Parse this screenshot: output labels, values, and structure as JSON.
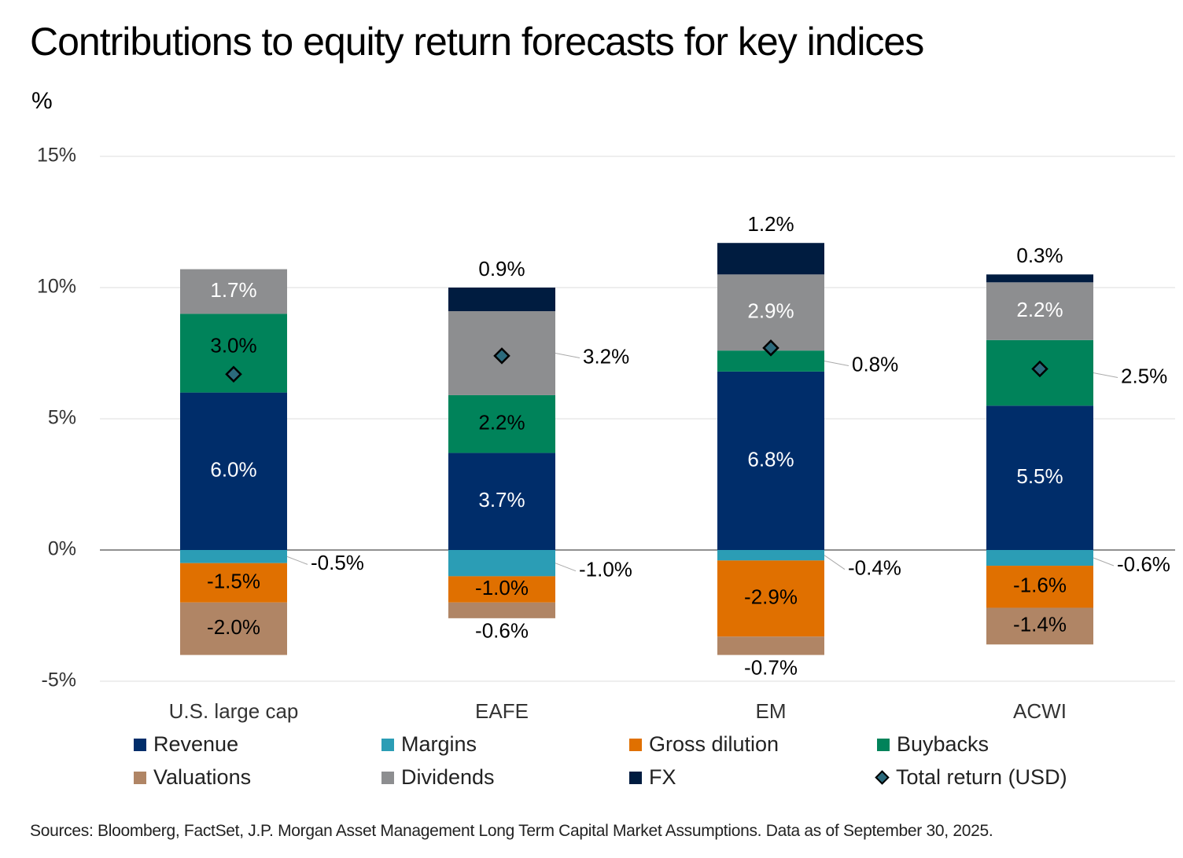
{
  "title": "Contributions to equity return forecasts for key indices",
  "unit_label": "%",
  "source": "Sources: Bloomberg, FactSet, J.P. Morgan Asset Management Long Term Capital Market Assumptions. Data as of September 30, 2025.",
  "chart_data": {
    "type": "bar",
    "stacked": true,
    "title": "Contributions to equity return forecasts for key indices",
    "xlabel": "",
    "ylabel": "%",
    "ylim": [
      -5,
      15
    ],
    "yticks": [
      15,
      10,
      5,
      0,
      -5
    ],
    "ytick_labels": [
      "15%",
      "10%",
      "5%",
      "0%",
      "-5%"
    ],
    "grid": true,
    "legend_position": "bottom",
    "categories": [
      "U.S. large cap",
      "EAFE",
      "EM",
      "ACWI"
    ],
    "series": [
      {
        "name": "Revenue",
        "color": "#002d6a",
        "values": [
          6.0,
          3.7,
          6.8,
          5.5
        ],
        "labels": [
          "6.0%",
          "3.7%",
          "6.8%",
          "5.5%"
        ]
      },
      {
        "name": "Margins",
        "color": "#2b9db5",
        "values": [
          -0.5,
          -1.0,
          -0.4,
          -0.6
        ],
        "labels": [
          "-0.5%",
          "-1.0%",
          "-0.4%",
          "-0.6%"
        ]
      },
      {
        "name": "Gross dilution",
        "color": "#e07000",
        "values": [
          -1.5,
          -1.0,
          -2.9,
          -1.6
        ],
        "labels": [
          "-1.5%",
          "-1.0%",
          "-2.9%",
          "-1.6%"
        ]
      },
      {
        "name": "Buybacks",
        "color": "#00835a",
        "values": [
          3.0,
          2.2,
          0.8,
          2.5
        ],
        "labels": [
          "3.0%",
          "2.2%",
          "0.8%",
          "2.5%"
        ]
      },
      {
        "name": "Valuations",
        "color": "#b08565",
        "values": [
          -2.0,
          -0.6,
          -0.7,
          -1.4
        ],
        "labels": [
          "-2.0%",
          "-0.6%",
          "-0.7%",
          "-1.4%"
        ]
      },
      {
        "name": "Dividends",
        "color": "#8d8e90",
        "values": [
          1.7,
          3.2,
          2.9,
          2.2
        ],
        "labels": [
          "1.7%",
          "3.2%",
          "2.9%",
          "2.2%"
        ]
      },
      {
        "name": "FX",
        "color": "#001c40",
        "values": [
          0.0,
          0.9,
          1.2,
          0.3
        ],
        "labels": [
          "",
          "0.9%",
          "1.2%",
          "0.3%"
        ]
      }
    ],
    "total_return": {
      "name": "Total return (USD)",
      "color": "#2b6a7c",
      "marker": "diamond",
      "values": [
        6.7,
        7.4,
        7.7,
        6.9
      ]
    }
  },
  "legend": [
    {
      "label": "Revenue",
      "color": "#002d6a",
      "marker": "square"
    },
    {
      "label": "Margins",
      "color": "#2b9db5",
      "marker": "square"
    },
    {
      "label": "Gross dilution",
      "color": "#e07000",
      "marker": "square"
    },
    {
      "label": "Buybacks",
      "color": "#00835a",
      "marker": "square"
    },
    {
      "label": "Valuations",
      "color": "#b08565",
      "marker": "square"
    },
    {
      "label": "Dividends",
      "color": "#8d8e90",
      "marker": "square"
    },
    {
      "label": "FX",
      "color": "#001c40",
      "marker": "square"
    },
    {
      "label": "Total return (USD)",
      "color": "#2b6a7c",
      "marker": "diamond"
    }
  ]
}
